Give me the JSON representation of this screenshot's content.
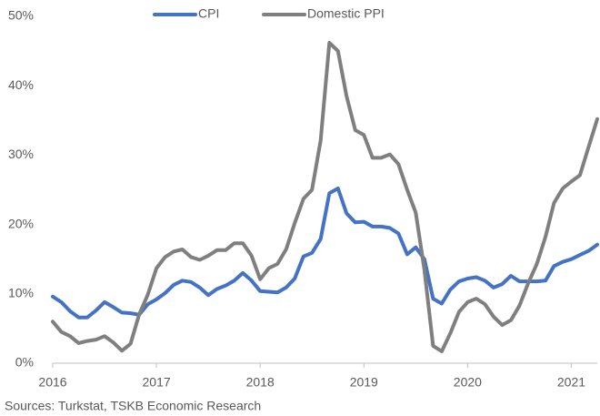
{
  "chart_data": {
    "type": "line",
    "source": "Sources: Turkstat, TSKB Economic Research",
    "x": [
      2016,
      2016.083,
      2016.167,
      2016.25,
      2016.333,
      2016.417,
      2016.5,
      2016.583,
      2016.667,
      2016.75,
      2016.833,
      2016.917,
      2017,
      2017.083,
      2017.167,
      2017.25,
      2017.333,
      2017.417,
      2017.5,
      2017.583,
      2017.667,
      2017.75,
      2017.833,
      2017.917,
      2018,
      2018.083,
      2018.167,
      2018.25,
      2018.333,
      2018.417,
      2018.5,
      2018.583,
      2018.667,
      2018.75,
      2018.833,
      2018.917,
      2019,
      2019.083,
      2019.167,
      2019.25,
      2019.333,
      2019.417,
      2019.5,
      2019.583,
      2019.667,
      2019.75,
      2019.833,
      2019.917,
      2020,
      2020.083,
      2020.167,
      2020.25,
      2020.333,
      2020.417,
      2020.5,
      2020.583,
      2020.667,
      2020.75,
      2020.833,
      2020.917,
      2021,
      2021.083,
      2021.167,
      2021.25
    ],
    "series": [
      {
        "name": "CPI",
        "color": "#4472c4",
        "values": [
          9.6,
          8.8,
          7.5,
          6.6,
          6.6,
          7.6,
          8.8,
          8.1,
          7.3,
          7.2,
          7.0,
          8.5,
          9.2,
          10.1,
          11.3,
          11.9,
          11.7,
          10.9,
          9.8,
          10.7,
          11.2,
          11.9,
          13.0,
          11.9,
          10.4,
          10.3,
          10.2,
          10.9,
          12.2,
          15.4,
          15.9,
          17.9,
          24.5,
          25.2,
          21.6,
          20.3,
          20.4,
          19.7,
          19.7,
          19.5,
          18.7,
          15.7,
          16.7,
          15.0,
          9.3,
          8.6,
          10.6,
          11.8,
          12.2,
          12.4,
          11.9,
          10.9,
          11.4,
          12.6,
          11.8,
          11.8,
          11.8,
          11.9,
          14.0,
          14.6,
          15.0,
          15.6,
          16.2,
          17.1
        ]
      },
      {
        "name": "Domestic PPI",
        "color": "#7f7f7f",
        "values": [
          6.0,
          4.5,
          3.9,
          2.9,
          3.2,
          3.4,
          3.9,
          3.0,
          1.8,
          2.8,
          7.0,
          9.9,
          13.7,
          15.3,
          16.1,
          16.4,
          15.3,
          14.9,
          15.5,
          16.3,
          16.3,
          17.3,
          17.3,
          15.5,
          12.1,
          13.7,
          14.3,
          16.4,
          20.2,
          23.7,
          25.0,
          32.1,
          46.2,
          45.0,
          38.5,
          33.6,
          32.9,
          29.6,
          29.6,
          30.1,
          28.7,
          25.0,
          21.7,
          13.5,
          2.5,
          1.7,
          4.3,
          7.4,
          8.8,
          9.3,
          8.5,
          6.7,
          5.5,
          6.2,
          8.3,
          11.5,
          14.3,
          18.2,
          23.1,
          25.2,
          26.2,
          27.1,
          31.2,
          35.2
        ]
      }
    ],
    "xlim": [
      2016,
      2021.25
    ],
    "xticks": [
      2016,
      2017,
      2018,
      2019,
      2020,
      2021
    ],
    "ylim": [
      0,
      50
    ],
    "yticks": [
      {
        "value": 0,
        "label": "0%"
      },
      {
        "value": 10,
        "label": "10%"
      },
      {
        "value": 20,
        "label": "20%"
      },
      {
        "value": 30,
        "label": "30%"
      },
      {
        "value": 40,
        "label": "40%"
      },
      {
        "value": 50,
        "label": "50%"
      }
    ],
    "grid": false,
    "legend": "top"
  }
}
